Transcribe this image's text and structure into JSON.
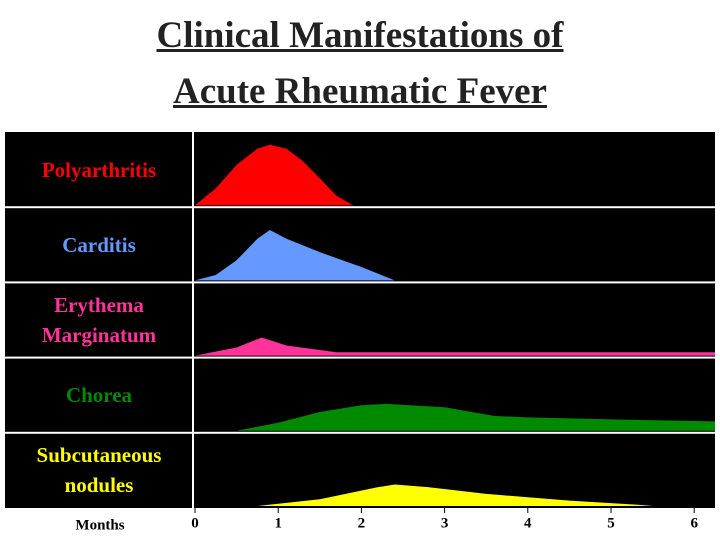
{
  "chart_data": {
    "type": "area",
    "title": "Clinical Manifestations of Acute Rheumatic Fever",
    "x_label": "Months",
    "xlim": [
      0,
      6.25
    ],
    "xticks": [
      0,
      1,
      2,
      3,
      4,
      5,
      6
    ],
    "ylim": [
      0,
      100
    ],
    "series": [
      {
        "name": "Polyarthritis",
        "color": "#ff0000",
        "x": [
          0,
          0.25,
          0.5,
          0.75,
          0.9,
          1.1,
          1.3,
          1.5,
          1.7,
          1.9
        ],
        "values": [
          0,
          25,
          60,
          84,
          90,
          84,
          65,
          40,
          14,
          0
        ]
      },
      {
        "name": "Carditis",
        "color": "#6699ff",
        "x": [
          0,
          0.25,
          0.5,
          0.75,
          0.9,
          1.1,
          1.5,
          2.0,
          2.4
        ],
        "values": [
          0,
          8,
          30,
          62,
          75,
          62,
          42,
          20,
          0
        ]
      },
      {
        "name": "Erythema Marginatum",
        "color": "#ff3399",
        "x": [
          0,
          0.5,
          0.8,
          1.1,
          1.7,
          6.25
        ],
        "values": [
          0,
          12,
          27,
          15,
          5,
          5
        ]
      },
      {
        "name": "Chorea",
        "color": "#008a00",
        "x": [
          0.5,
          1.0,
          1.5,
          2.0,
          2.3,
          3.0,
          3.6,
          4.0,
          5.0,
          6.25
        ],
        "values": [
          0,
          12,
          28,
          38,
          40,
          35,
          22,
          20,
          17,
          14
        ]
      },
      {
        "name": "Subcutaneous nodules",
        "color": "#ffff00",
        "x": [
          0.75,
          1.5,
          2.2,
          2.4,
          2.8,
          3.5,
          4.5,
          5.3,
          5.5
        ],
        "values": [
          0,
          10,
          28,
          32,
          28,
          18,
          8,
          2,
          0
        ]
      }
    ]
  }
}
